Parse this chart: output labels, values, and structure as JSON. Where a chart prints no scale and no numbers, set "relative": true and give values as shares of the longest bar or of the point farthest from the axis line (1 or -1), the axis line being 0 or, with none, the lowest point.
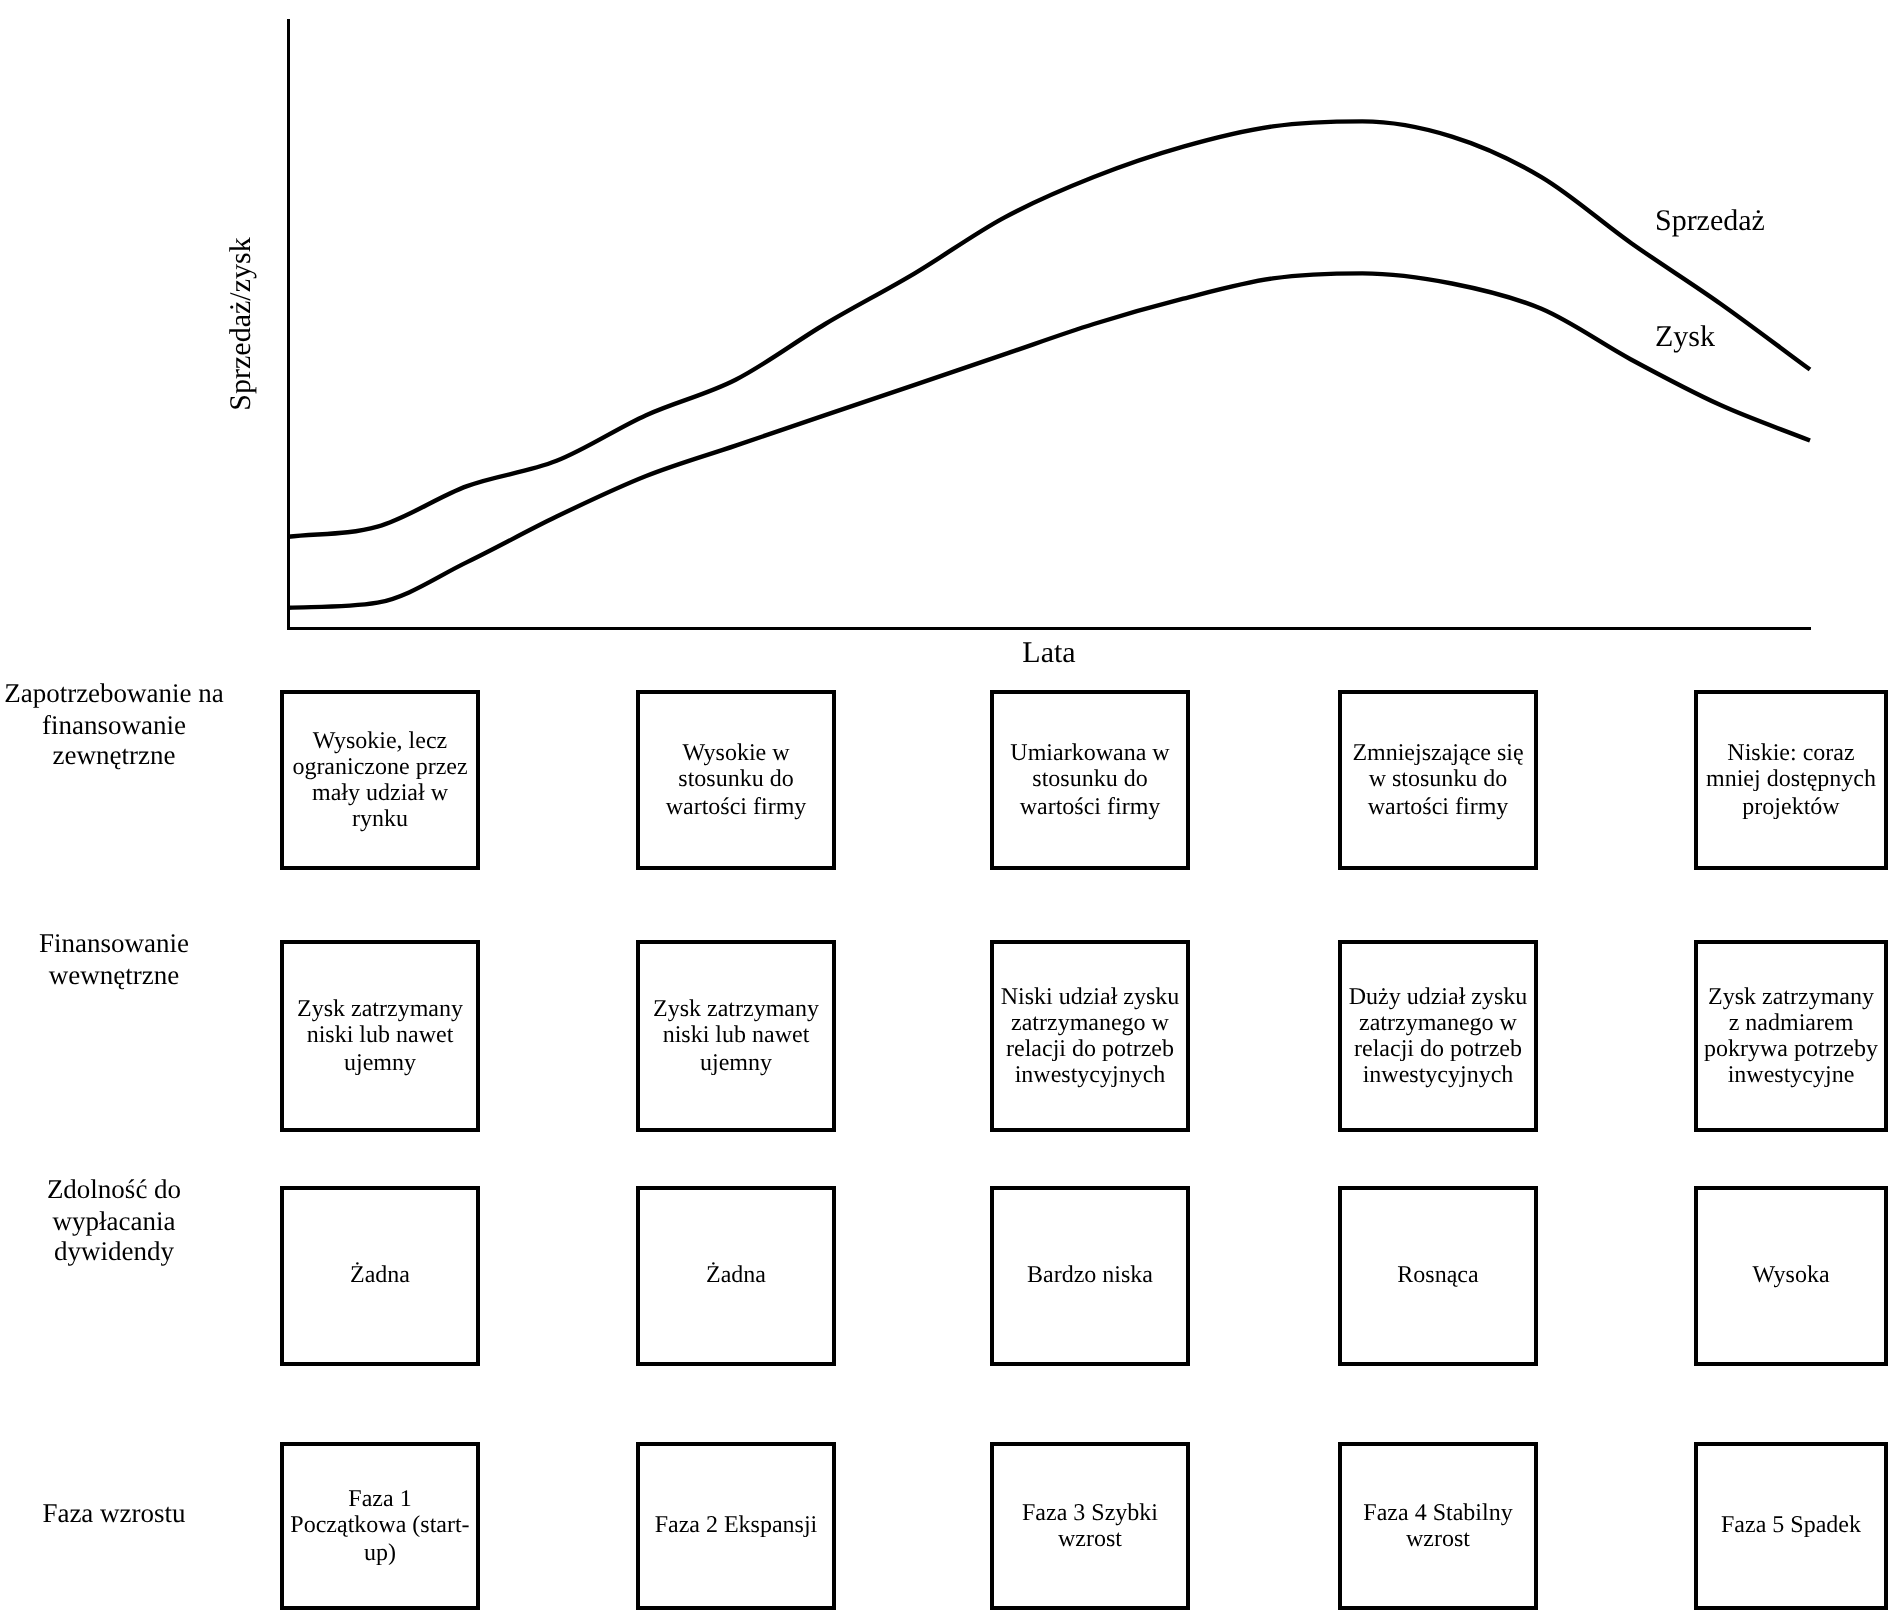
{
  "chart_data": [
    {
      "type": "line",
      "xlabel": "Lata",
      "ylabel": "Sprzedaż/zysk",
      "relative": true,
      "categories": [
        null,
        null,
        null,
        null,
        null,
        null,
        null,
        null,
        null,
        null,
        null,
        null,
        null,
        null,
        null,
        null,
        null,
        null
      ],
      "series": [
        {
          "name": "Sprzedaż",
          "color": "#000000",
          "values": [
            0.18,
            0.2,
            0.28,
            0.33,
            0.42,
            0.49,
            0.6,
            0.7,
            0.81,
            0.89,
            0.95,
            0.99,
            1.0,
            0.97,
            0.89,
            0.76,
            0.64,
            0.51
          ]
        },
        {
          "name": "Zysk",
          "color": "#000000",
          "values": [
            0.04,
            0.05,
            0.13,
            0.22,
            0.3,
            0.36,
            0.42,
            0.48,
            0.54,
            0.6,
            0.65,
            0.69,
            0.7,
            0.68,
            0.63,
            0.53,
            0.44,
            0.37
          ]
        }
      ]
    },
    {
      "type": "other",
      "annotations": [
        "Zapotrzebowanie na finansowanie zewnętrzne",
        "Wysokie, lecz ograniczone przez mały udział w rynku",
        "Wysokie w stosunku do wartości firmy",
        "Umiarkowana w stosunku do wartości firmy",
        "Zmniejszające się w stosunku do wartości firmy",
        "Niskie: coraz mniej dostępnych projektów",
        "Finansowanie wewnętrzne",
        "Zysk zatrzymany niski lub nawet ujemny",
        "Zysk zatrzymany niski lub nawet ujemny",
        "Niski udział zysku zatrzymanego w relacji do potrzeb inwestycyjnych",
        "Duży udział zysku zatrzymanego w relacji do potrzeb inwestycyjnych",
        "Zysk zatrzymany z nadmiarem pokrywa potrzeby inwestycyjne",
        "Zdolność do wypłacania dywidendy",
        "Żadna",
        "Żadna",
        "Bardzo niska",
        "Rosnąca",
        "Wysoka",
        "Faza wzrostu",
        "Faza 1 Początkowa (start-up)",
        "Faza 2 Ekspansji",
        "Faza 3 Szybki wzrost",
        "Faza 4 Stabilny wzrost",
        "Faza 5 Spadek"
      ]
    }
  ]
}
